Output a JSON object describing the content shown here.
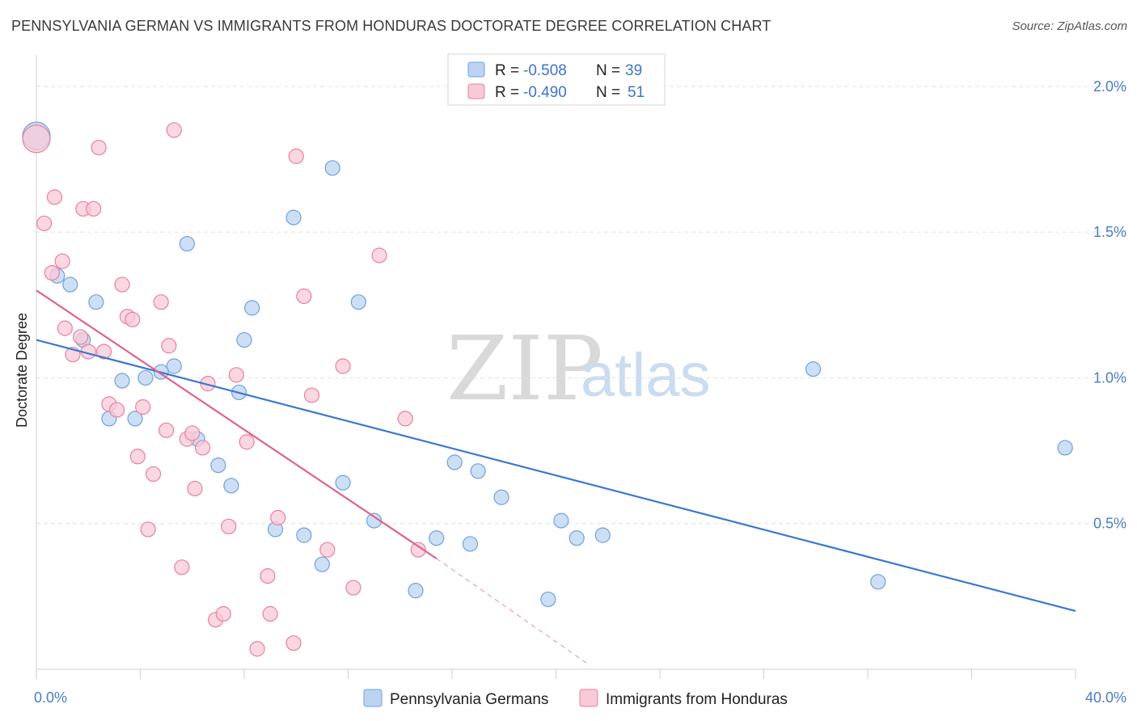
{
  "title": "PENNSYLVANIA GERMAN VS IMMIGRANTS FROM HONDURAS DOCTORATE DEGREE CORRELATION CHART",
  "source": "Source: ZipAtlas.com",
  "watermark": {
    "zip": "ZIP",
    "atlas": "atlas"
  },
  "legend": {
    "rows": [
      {
        "r_label": "R =",
        "r_value": "-0.508",
        "n_label": "N =",
        "n_value": "39"
      },
      {
        "r_label": "R =",
        "r_value": "-0.490",
        "n_label": "N =",
        "n_value": "51"
      }
    ]
  },
  "chart_data": {
    "type": "scatter",
    "title": "PENNSYLVANIA GERMAN VS IMMIGRANTS FROM HONDURAS DOCTORATE DEGREE CORRELATION CHART",
    "xlabel": "",
    "ylabel": "Doctorate Degree",
    "xlim": [
      0,
      40
    ],
    "ylim": [
      0,
      2.08
    ],
    "x_tick_labels": [
      "0.0%",
      "40.0%"
    ],
    "y_ticks": [
      0.5,
      1.0,
      1.5,
      2.0
    ],
    "y_tick_labels": [
      "0.5%",
      "1.0%",
      "1.5%",
      "2.0%"
    ],
    "grid": "horizontal dashed",
    "legend_position": "top-center",
    "series": [
      {
        "name": "Pennsylvania Germans",
        "color": "#6fa0e0",
        "fill": "#bcd4f2",
        "r": -0.508,
        "n": 39,
        "trend": {
          "x": [
            0,
            40
          ],
          "y": [
            1.13,
            0.2
          ]
        },
        "points": [
          [
            0.0,
            1.83
          ],
          [
            0.8,
            1.35
          ],
          [
            1.3,
            1.32
          ],
          [
            2.3,
            1.26
          ],
          [
            1.8,
            1.13
          ],
          [
            3.3,
            0.99
          ],
          [
            4.2,
            1.0
          ],
          [
            2.8,
            0.86
          ],
          [
            3.8,
            0.86
          ],
          [
            5.3,
            1.04
          ],
          [
            5.8,
            1.46
          ],
          [
            6.2,
            0.79
          ],
          [
            7.0,
            0.7
          ],
          [
            7.5,
            0.63
          ],
          [
            8.3,
            1.24
          ],
          [
            8.0,
            1.13
          ],
          [
            7.8,
            0.95
          ],
          [
            9.2,
            0.48
          ],
          [
            9.9,
            1.55
          ],
          [
            10.3,
            0.46
          ],
          [
            11.0,
            0.36
          ],
          [
            11.4,
            1.72
          ],
          [
            11.8,
            0.64
          ],
          [
            12.4,
            1.26
          ],
          [
            13.0,
            0.51
          ],
          [
            14.6,
            0.27
          ],
          [
            15.4,
            0.45
          ],
          [
            16.1,
            0.71
          ],
          [
            16.7,
            0.43
          ],
          [
            17.0,
            0.68
          ],
          [
            17.9,
            0.59
          ],
          [
            19.7,
            0.24
          ],
          [
            20.2,
            0.51
          ],
          [
            20.8,
            0.45
          ],
          [
            21.8,
            0.46
          ],
          [
            29.9,
            1.03
          ],
          [
            32.4,
            0.3
          ],
          [
            39.6,
            0.76
          ],
          [
            4.8,
            1.02
          ]
        ]
      },
      {
        "name": "Immigrants from Honduras",
        "color": "#e8809f",
        "fill": "#f8c9d7",
        "r": -0.49,
        "n": 51,
        "trend": {
          "x": [
            0,
            15.4
          ],
          "y": [
            1.3,
            0.38
          ]
        },
        "trend_dashed": {
          "x": [
            15.4,
            21.2
          ],
          "y": [
            0.38,
            0.02
          ]
        },
        "points": [
          [
            0.0,
            1.82
          ],
          [
            0.3,
            1.53
          ],
          [
            0.6,
            1.36
          ],
          [
            1.0,
            1.4
          ],
          [
            0.7,
            1.62
          ],
          [
            1.1,
            1.17
          ],
          [
            1.4,
            1.08
          ],
          [
            1.7,
            1.14
          ],
          [
            2.0,
            1.09
          ],
          [
            1.8,
            1.58
          ],
          [
            2.2,
            1.58
          ],
          [
            2.4,
            1.79
          ],
          [
            2.6,
            1.09
          ],
          [
            2.8,
            0.91
          ],
          [
            3.1,
            0.89
          ],
          [
            3.3,
            1.32
          ],
          [
            3.5,
            1.21
          ],
          [
            3.7,
            1.2
          ],
          [
            3.9,
            0.73
          ],
          [
            4.1,
            0.9
          ],
          [
            4.3,
            0.48
          ],
          [
            4.5,
            0.67
          ],
          [
            4.8,
            1.26
          ],
          [
            5.0,
            0.82
          ],
          [
            5.1,
            1.11
          ],
          [
            5.3,
            1.85
          ],
          [
            5.6,
            0.35
          ],
          [
            5.8,
            0.79
          ],
          [
            6.0,
            0.81
          ],
          [
            6.1,
            0.62
          ],
          [
            6.4,
            0.76
          ],
          [
            6.6,
            0.98
          ],
          [
            6.9,
            0.17
          ],
          [
            7.2,
            0.19
          ],
          [
            7.4,
            0.49
          ],
          [
            7.7,
            1.01
          ],
          [
            8.1,
            0.78
          ],
          [
            8.5,
            0.07
          ],
          [
            8.9,
            0.32
          ],
          [
            9.0,
            0.19
          ],
          [
            9.3,
            0.52
          ],
          [
            9.9,
            0.09
          ],
          [
            10.0,
            1.76
          ],
          [
            10.3,
            1.28
          ],
          [
            10.6,
            0.94
          ],
          [
            11.2,
            0.41
          ],
          [
            11.8,
            1.04
          ],
          [
            12.2,
            0.28
          ],
          [
            13.2,
            1.42
          ],
          [
            14.2,
            0.86
          ],
          [
            14.7,
            0.41
          ]
        ]
      }
    ]
  }
}
